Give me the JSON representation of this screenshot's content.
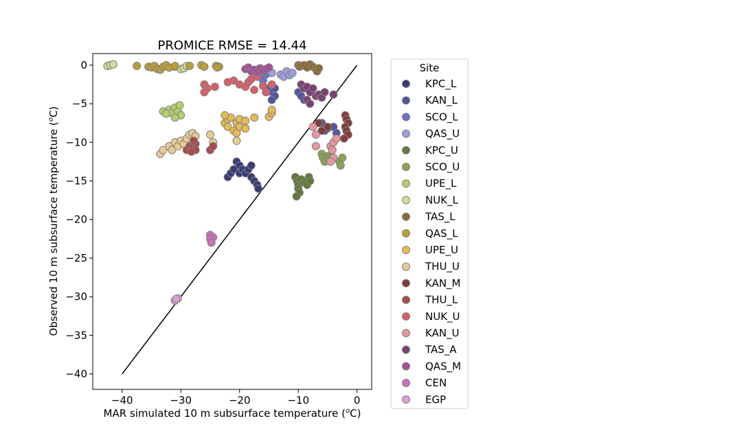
{
  "chart_data": {
    "type": "scatter",
    "title": "PROMICE RMSE = 14.44",
    "xlabel": "MAR simulated 10 m subsurface temperature (°C)",
    "ylabel": "Observed 10 m subsurface temperature (°C)",
    "xlim": [
      -45,
      2.5
    ],
    "ylim": [
      -42,
      1.5
    ],
    "xticks": [
      -40,
      -30,
      -20,
      -10,
      0
    ],
    "yticks": [
      -40,
      -35,
      -30,
      -25,
      -20,
      -15,
      -10,
      -5,
      0
    ],
    "xtick_labels": [
      "−40",
      "−30",
      "−20",
      "−10",
      "0"
    ],
    "ytick_labels": [
      "−40",
      "−35",
      "−30",
      "−25",
      "−20",
      "−15",
      "−10",
      "−5",
      "0"
    ],
    "identity_line": {
      "x": [
        -40,
        0
      ],
      "y": [
        -40,
        0
      ]
    },
    "legend": {
      "title": "Site",
      "placement": "outside-right"
    },
    "series": [
      {
        "name": "KPC_L",
        "color": "#393b79",
        "points": [
          [
            -22,
            -14.5
          ],
          [
            -21.5,
            -14
          ],
          [
            -21,
            -13.5
          ],
          [
            -20.5,
            -12.5
          ],
          [
            -20,
            -13
          ],
          [
            -20,
            -14
          ],
          [
            -19.5,
            -13.5
          ],
          [
            -19,
            -14
          ],
          [
            -18.5,
            -13.5
          ],
          [
            -18,
            -13
          ],
          [
            -18,
            -14.5
          ],
          [
            -17.5,
            -15
          ],
          [
            -17,
            -15.5
          ],
          [
            -16.8,
            -16
          ]
        ]
      },
      {
        "name": "KAN_L",
        "color": "#5254a3",
        "points": [
          [
            -15,
            -3
          ],
          [
            -14.5,
            -3.5
          ],
          [
            -14,
            -4
          ],
          [
            -14.5,
            -4.5
          ],
          [
            -14,
            -3
          ],
          [
            -10,
            -3.5
          ],
          [
            -9.5,
            -4
          ],
          [
            -9,
            -4.5
          ],
          [
            -6,
            -7.5
          ],
          [
            -5,
            -8.2
          ],
          [
            -4,
            -8
          ],
          [
            -3.5,
            -8.8
          ],
          [
            -5.5,
            -8.5
          ]
        ]
      },
      {
        "name": "SCO_L",
        "color": "#6b6ecf",
        "points": [
          [
            -17,
            -1
          ],
          [
            -16.5,
            -1.5
          ],
          [
            -16,
            -2
          ],
          [
            -15.5,
            -1.2
          ],
          [
            -16,
            -0.8
          ]
        ]
      },
      {
        "name": "QAS_U",
        "color": "#9c9ede",
        "points": [
          [
            -15,
            -0.5
          ],
          [
            -14.5,
            -1
          ],
          [
            -13,
            -1.2
          ],
          [
            -12.5,
            -1.5
          ],
          [
            -12,
            -0.8
          ],
          [
            -11.5,
            -1.3
          ],
          [
            -11,
            -1
          ]
        ]
      },
      {
        "name": "KPC_U",
        "color": "#637939",
        "points": [
          [
            -10.5,
            -14.5
          ],
          [
            -10.2,
            -15
          ],
          [
            -10,
            -15.5
          ],
          [
            -10,
            -16
          ],
          [
            -9.8,
            -16.5
          ],
          [
            -10.3,
            -17
          ],
          [
            -9.5,
            -14.8
          ],
          [
            -9,
            -15.2
          ],
          [
            -8.5,
            -15.5
          ],
          [
            -8.2,
            -14.5
          ],
          [
            -8,
            -15
          ]
        ]
      },
      {
        "name": "SCO_U",
        "color": "#8ca252",
        "points": [
          [
            -6,
            -11.5
          ],
          [
            -5.8,
            -12
          ],
          [
            -5.5,
            -12.5
          ],
          [
            -5,
            -11.8
          ],
          [
            -4.8,
            -12.2
          ],
          [
            -3,
            -12.5
          ],
          [
            -2.8,
            -13
          ],
          [
            -2.5,
            -12
          ]
        ]
      },
      {
        "name": "UPE_L",
        "color": "#b5cf6b",
        "points": [
          [
            -33,
            -6
          ],
          [
            -32,
            -5.8
          ],
          [
            -31.5,
            -6.2
          ],
          [
            -31,
            -5.5
          ],
          [
            -30.5,
            -6
          ],
          [
            -30.2,
            -5.2
          ],
          [
            -30,
            -6.5
          ],
          [
            -31,
            -6.8
          ],
          [
            -32.5,
            -6.3
          ]
        ]
      },
      {
        "name": "NUK_L",
        "color": "#cedb9c",
        "points": [
          [
            -42.5,
            -0.1
          ],
          [
            -42,
            0
          ],
          [
            -41.5,
            0.1
          ],
          [
            -32,
            -0.3
          ],
          [
            -31,
            -0.2
          ],
          [
            -30,
            -0.5
          ],
          [
            -29.5,
            -0.4
          ],
          [
            -29,
            -0.1
          ]
        ]
      },
      {
        "name": "TAS_L",
        "color": "#8c6d31",
        "points": [
          [
            -10,
            0
          ],
          [
            -9.8,
            -0.2
          ],
          [
            -9.5,
            -0.1
          ],
          [
            -9,
            0
          ],
          [
            -8.5,
            -0.3
          ],
          [
            -8,
            0.1
          ],
          [
            -7.5,
            -0.2
          ],
          [
            -7,
            -0.5
          ],
          [
            -6.8,
            -0.8
          ],
          [
            -6.5,
            -0.4
          ]
        ]
      },
      {
        "name": "QAS_L",
        "color": "#bd9e39",
        "points": [
          [
            -37.5,
            -0.1
          ],
          [
            -35.5,
            -0.2
          ],
          [
            -35,
            -0.3
          ],
          [
            -34.5,
            -0.1
          ],
          [
            -34,
            -0.5
          ],
          [
            -33.5,
            -0.6
          ],
          [
            -33,
            -0.2
          ],
          [
            -32.5,
            0
          ],
          [
            -32,
            -0.3
          ],
          [
            -31,
            -0.1
          ],
          [
            -28.5,
            -0.1
          ],
          [
            -26.5,
            0
          ],
          [
            -26,
            -0.2
          ],
          [
            -24,
            -0.1
          ],
          [
            -23.5,
            -0.2
          ],
          [
            -23.8,
            -0.3
          ]
        ]
      },
      {
        "name": "UPE_U",
        "color": "#e7ba52",
        "points": [
          [
            -22.5,
            -7.5
          ],
          [
            -22,
            -7
          ],
          [
            -21.5,
            -6.8
          ],
          [
            -22,
            -8
          ],
          [
            -21,
            -8.5
          ],
          [
            -20.5,
            -7.5
          ],
          [
            -20,
            -7
          ],
          [
            -20,
            -8
          ],
          [
            -20.5,
            -8.8
          ],
          [
            -19,
            -7.2
          ],
          [
            -19,
            -8.2
          ],
          [
            -17.5,
            -6.8
          ],
          [
            -15,
            -6.7
          ],
          [
            -14.5,
            -6.2
          ],
          [
            -14.5,
            -5.8
          ],
          [
            -22.5,
            -6.5
          ]
        ]
      },
      {
        "name": "THU_U",
        "color": "#e7cb94",
        "points": [
          [
            -33.5,
            -11.5
          ],
          [
            -33,
            -11
          ],
          [
            -32,
            -10.5
          ],
          [
            -31.5,
            -11
          ],
          [
            -31,
            -10
          ],
          [
            -30.5,
            -10.5
          ],
          [
            -30,
            -9.8
          ],
          [
            -29.5,
            -10.2
          ],
          [
            -29,
            -9.5
          ],
          [
            -28.5,
            -9
          ],
          [
            -28,
            -8.8
          ],
          [
            -27.5,
            -9.2
          ],
          [
            -25,
            -9
          ],
          [
            -24.5,
            -10
          ],
          [
            -20.5,
            -9.8
          ]
        ]
      },
      {
        "name": "KAN_M",
        "color": "#843c39",
        "points": [
          [
            -6.5,
            -7.5
          ],
          [
            -6,
            -8.5
          ],
          [
            -5,
            -8
          ],
          [
            -2,
            -6.5
          ],
          [
            -1.8,
            -7
          ],
          [
            -1.5,
            -7.5
          ],
          [
            -2,
            -8
          ],
          [
            -1.8,
            -8.5
          ],
          [
            -1.5,
            -9
          ],
          [
            -2.2,
            -9.5
          ]
        ]
      },
      {
        "name": "THU_L",
        "color": "#ad494a",
        "points": [
          [
            -29,
            -11
          ],
          [
            -28.5,
            -10.5
          ],
          [
            -28,
            -10.5
          ],
          [
            -27.5,
            -10.2
          ],
          [
            -27.5,
            -11
          ],
          [
            -27.8,
            -9.8
          ],
          [
            -28.2,
            -11.2
          ],
          [
            -25,
            -11
          ],
          [
            -24.5,
            -10.5
          ]
        ]
      },
      {
        "name": "NUK_U",
        "color": "#d6616b",
        "points": [
          [
            -26,
            -2.5
          ],
          [
            -25.5,
            -3
          ],
          [
            -26,
            -3.5
          ],
          [
            -24.2,
            -2.8
          ],
          [
            -22,
            -2.2
          ],
          [
            -21,
            -2
          ],
          [
            -20,
            -2.5
          ],
          [
            -19,
            -2.8
          ],
          [
            -18.5,
            -2.2
          ],
          [
            -18,
            -1.8
          ],
          [
            -17.5,
            -3.2
          ],
          [
            -17,
            -1.5
          ],
          [
            -16,
            -2.7
          ],
          [
            -15.5,
            -3.5
          ],
          [
            -14.5,
            -2.5
          ]
        ]
      },
      {
        "name": "KAN_U",
        "color": "#e7969c",
        "points": [
          [
            -7.5,
            -8
          ],
          [
            -7,
            -9
          ],
          [
            -7,
            -10.5
          ],
          [
            -4.5,
            -10.5
          ],
          [
            -4.2,
            -11
          ],
          [
            -4,
            -12
          ],
          [
            -4.5,
            -12.5
          ],
          [
            -4,
            -10
          ],
          [
            -3.5,
            -9.5
          ]
        ]
      },
      {
        "name": "TAS_A",
        "color": "#7b4173",
        "points": [
          [
            -9.5,
            -2.5
          ],
          [
            -9,
            -3
          ],
          [
            -8.5,
            -2.8
          ],
          [
            -8,
            -3.5
          ],
          [
            -7.5,
            -3
          ],
          [
            -7,
            -4
          ],
          [
            -6.5,
            -3.8
          ],
          [
            -6,
            -4.2
          ],
          [
            -5.5,
            -3.5
          ],
          [
            -4,
            -3.8
          ],
          [
            -8.5,
            -4.5
          ],
          [
            -8,
            -5
          ]
        ]
      },
      {
        "name": "QAS_M",
        "color": "#a55194",
        "points": [
          [
            -19,
            -0.5
          ],
          [
            -18.5,
            -0.3
          ],
          [
            -18,
            -0.8
          ],
          [
            -17.5,
            -0.6
          ],
          [
            -17,
            -0.9
          ],
          [
            -16.5,
            -0.4
          ],
          [
            -16,
            -0.7
          ],
          [
            -15.5,
            -0.5
          ],
          [
            -15,
            -0.3
          ]
        ]
      },
      {
        "name": "CEN",
        "color": "#ce6dbd",
        "points": [
          [
            -25,
            -22
          ],
          [
            -24.5,
            -22.3
          ],
          [
            -25,
            -22.5
          ],
          [
            -24.8,
            -23
          ]
        ]
      },
      {
        "name": "EGP",
        "color": "#de9ed6",
        "points": [
          [
            -31,
            -30.5
          ],
          [
            -30.5,
            -30.2
          ],
          [
            -30.8,
            -30.3
          ]
        ]
      }
    ]
  }
}
